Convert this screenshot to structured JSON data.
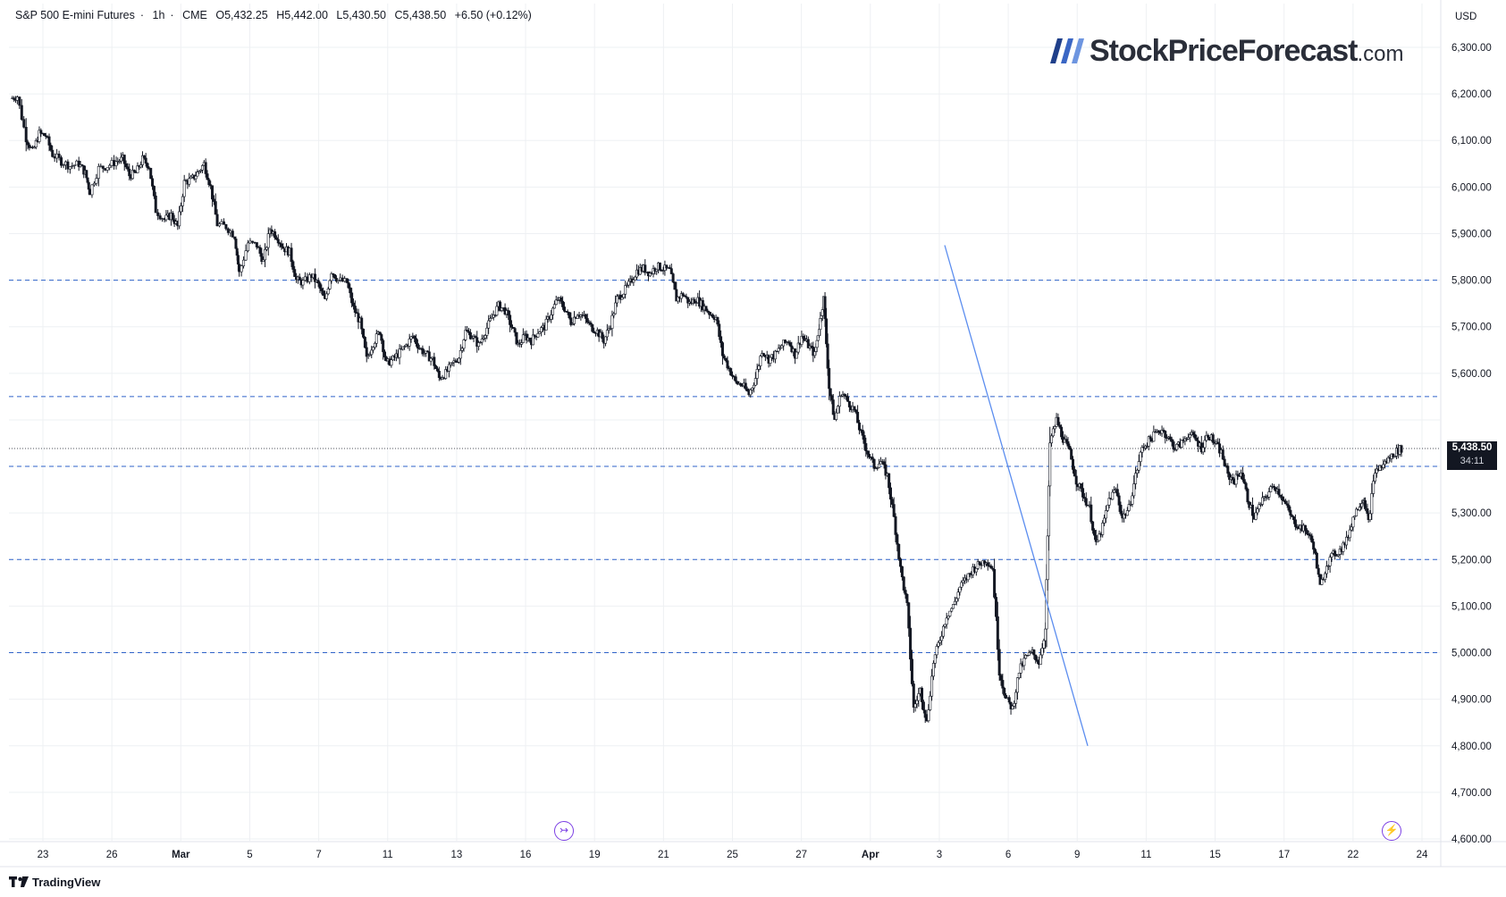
{
  "header": {
    "symbol": "S&P 500 E-mini Futures",
    "interval": "1h",
    "exchange": "CME",
    "open": "O5,432.25",
    "high": "H5,442.00",
    "low": "L5,430.50",
    "close": "C5,438.50",
    "change": "+6.50 (+0.12%)"
  },
  "currency": "USD",
  "brand": {
    "name": "StockPriceForecast",
    "domain": ".com"
  },
  "footer": {
    "provider": "TradingView"
  },
  "price_tag": {
    "value": "5,438.50",
    "countdown": "34:11"
  },
  "colors": {
    "candles": "#131722",
    "trendline": "#5b8def",
    "levels": "#2e62c9",
    "grid": "#eef0f3",
    "accent": "#7b3fe4"
  },
  "chart_data": {
    "type": "candlestick",
    "timeframe": "1h",
    "ylim": [
      4600,
      6300
    ],
    "yticks": [
      6300,
      6200,
      6100,
      6000,
      5900,
      5800,
      5700,
      5600,
      5500,
      5400,
      5300,
      5200,
      5100,
      5000,
      4900,
      4800,
      4700,
      4600
    ],
    "ytick_labels": [
      "6,300.00",
      "6,200.00",
      "6,100.00",
      "6,000.00",
      "5,900.00",
      "5,800.00",
      "5,700.00",
      "5,600.00",
      "",
      "",
      "5,300.00",
      "5,200.00",
      "5,100.00",
      "5,000.00",
      "4,900.00",
      "4,800.00",
      "4,700.00",
      "4,600.00"
    ],
    "xtick_labels": [
      "23",
      "26",
      "Mar",
      "5",
      "7",
      "11",
      "13",
      "16",
      "19",
      "21",
      "25",
      "27",
      "Apr",
      "3",
      "6",
      "9",
      "11",
      "15",
      "17",
      "22",
      "24"
    ],
    "xtick_bold": [
      "Mar",
      "Apr"
    ],
    "horizontal_levels": [
      5800,
      5550,
      5400,
      5200,
      5000
    ],
    "last_price": 5438.5,
    "trendline": {
      "from": {
        "label": "Apr 2",
        "value": 5875
      },
      "to": {
        "label": "Apr 8",
        "value": 4800
      }
    },
    "path": [
      [
        0,
        6190
      ],
      [
        0.6,
        6195
      ],
      [
        1.4,
        6105
      ],
      [
        2.0,
        6075
      ],
      [
        2.6,
        6115
      ],
      [
        3.2,
        6110
      ],
      [
        3.8,
        6070
      ],
      [
        4.6,
        6055
      ],
      [
        5.4,
        6045
      ],
      [
        6.2,
        6050
      ],
      [
        6.8,
        6030
      ],
      [
        7.2,
        5990
      ],
      [
        8.0,
        6040
      ],
      [
        8.8,
        6045
      ],
      [
        9.6,
        6055
      ],
      [
        10.2,
        6060
      ],
      [
        10.8,
        6025
      ],
      [
        11.4,
        6030
      ],
      [
        12.0,
        6060
      ],
      [
        12.6,
        6045
      ],
      [
        13.2,
        5950
      ],
      [
        14.0,
        5930
      ],
      [
        14.6,
        5940
      ],
      [
        15.2,
        5915
      ],
      [
        15.8,
        6010
      ],
      [
        16.4,
        6015
      ],
      [
        17.0,
        6030
      ],
      [
        17.6,
        6050
      ],
      [
        18.2,
        6000
      ],
      [
        18.8,
        5920
      ],
      [
        19.6,
        5915
      ],
      [
        20.4,
        5895
      ],
      [
        20.8,
        5815
      ],
      [
        21.6,
        5880
      ],
      [
        22.4,
        5875
      ],
      [
        23.0,
        5840
      ],
      [
        23.6,
        5910
      ],
      [
        24.2,
        5895
      ],
      [
        24.8,
        5870
      ],
      [
        25.4,
        5860
      ],
      [
        26.0,
        5800
      ],
      [
        26.6,
        5795
      ],
      [
        27.4,
        5810
      ],
      [
        28.0,
        5790
      ],
      [
        28.6,
        5755
      ],
      [
        29.2,
        5820
      ],
      [
        29.8,
        5800
      ],
      [
        30.6,
        5795
      ],
      [
        31.2,
        5740
      ],
      [
        31.8,
        5710
      ],
      [
        32.4,
        5630
      ],
      [
        33.0,
        5665
      ],
      [
        33.6,
        5690
      ],
      [
        34.2,
        5620
      ],
      [
        34.8,
        5630
      ],
      [
        35.4,
        5645
      ],
      [
        36.0,
        5660
      ],
      [
        36.6,
        5680
      ],
      [
        37.2,
        5655
      ],
      [
        37.8,
        5640
      ],
      [
        38.4,
        5630
      ],
      [
        39.0,
        5590
      ],
      [
        39.6,
        5600
      ],
      [
        40.2,
        5620
      ],
      [
        40.8,
        5635
      ],
      [
        41.4,
        5690
      ],
      [
        42.0,
        5680
      ],
      [
        42.6,
        5660
      ],
      [
        43.2,
        5690
      ],
      [
        43.8,
        5720
      ],
      [
        44.4,
        5745
      ],
      [
        45.0,
        5735
      ],
      [
        45.6,
        5700
      ],
      [
        46.2,
        5660
      ],
      [
        46.8,
        5680
      ],
      [
        47.4,
        5670
      ],
      [
        48.0,
        5690
      ],
      [
        48.6,
        5700
      ],
      [
        49.2,
        5730
      ],
      [
        49.8,
        5760
      ],
      [
        50.4,
        5740
      ],
      [
        51.0,
        5710
      ],
      [
        51.6,
        5730
      ],
      [
        52.2,
        5720
      ],
      [
        52.8,
        5700
      ],
      [
        53.4,
        5690
      ],
      [
        54.0,
        5670
      ],
      [
        54.6,
        5705
      ],
      [
        55.2,
        5760
      ],
      [
        55.8,
        5775
      ],
      [
        56.4,
        5795
      ],
      [
        57.0,
        5820
      ],
      [
        57.6,
        5825
      ],
      [
        58.2,
        5815
      ],
      [
        58.8,
        5830
      ],
      [
        59.4,
        5825
      ],
      [
        60.0,
        5820
      ],
      [
        60.6,
        5760
      ],
      [
        61.2,
        5770
      ],
      [
        61.8,
        5750
      ],
      [
        62.4,
        5760
      ],
      [
        63.0,
        5745
      ],
      [
        63.6,
        5730
      ],
      [
        64.2,
        5720
      ],
      [
        64.8,
        5640
      ],
      [
        65.4,
        5610
      ],
      [
        66.0,
        5580
      ],
      [
        66.6,
        5575
      ],
      [
        67.2,
        5555
      ],
      [
        67.8,
        5590
      ],
      [
        68.4,
        5650
      ],
      [
        69.0,
        5630
      ],
      [
        69.6,
        5640
      ],
      [
        70.2,
        5660
      ],
      [
        70.8,
        5670
      ],
      [
        71.4,
        5640
      ],
      [
        72.0,
        5680
      ],
      [
        72.6,
        5660
      ],
      [
        73.2,
        5640
      ],
      [
        73.6,
        5700
      ],
      [
        74.0,
        5760
      ],
      [
        74.5,
        5570
      ],
      [
        75.0,
        5500
      ],
      [
        75.6,
        5560
      ],
      [
        76.2,
        5540
      ],
      [
        76.8,
        5520
      ],
      [
        77.4,
        5470
      ],
      [
        78.0,
        5430
      ],
      [
        78.6,
        5400
      ],
      [
        79.2,
        5410
      ],
      [
        79.8,
        5380
      ],
      [
        80.4,
        5290
      ],
      [
        81.0,
        5180
      ],
      [
        81.6,
        5100
      ],
      [
        82.2,
        4880
      ],
      [
        82.8,
        4920
      ],
      [
        83.4,
        4850
      ],
      [
        84.0,
        4980
      ],
      [
        84.6,
        5030
      ],
      [
        85.2,
        5080
      ],
      [
        85.8,
        5100
      ],
      [
        86.4,
        5140
      ],
      [
        87.0,
        5160
      ],
      [
        87.6,
        5180
      ],
      [
        88.2,
        5190
      ],
      [
        88.8,
        5200
      ],
      [
        89.4,
        5180
      ],
      [
        90.0,
        4960
      ],
      [
        90.6,
        4900
      ],
      [
        91.2,
        4880
      ],
      [
        91.8,
        4960
      ],
      [
        92.4,
        4990
      ],
      [
        93.0,
        5000
      ],
      [
        93.6,
        4980
      ],
      [
        94.2,
        5050
      ],
      [
        94.6,
        5450
      ],
      [
        95.2,
        5500
      ],
      [
        95.8,
        5460
      ],
      [
        96.4,
        5430
      ],
      [
        97.0,
        5370
      ],
      [
        97.6,
        5340
      ],
      [
        98.2,
        5310
      ],
      [
        98.8,
        5230
      ],
      [
        99.4,
        5270
      ],
      [
        100.0,
        5330
      ],
      [
        100.6,
        5350
      ],
      [
        101.2,
        5290
      ],
      [
        101.8,
        5310
      ],
      [
        102.4,
        5380
      ],
      [
        103.0,
        5440
      ],
      [
        103.6,
        5455
      ],
      [
        104.2,
        5470
      ],
      [
        104.8,
        5480
      ],
      [
        105.4,
        5460
      ],
      [
        106.0,
        5440
      ],
      [
        106.6,
        5450
      ],
      [
        107.2,
        5470
      ],
      [
        107.8,
        5460
      ],
      [
        108.4,
        5440
      ],
      [
        109.0,
        5470
      ],
      [
        109.6,
        5450
      ],
      [
        110.2,
        5430
      ],
      [
        110.8,
        5380
      ],
      [
        111.4,
        5370
      ],
      [
        112.0,
        5390
      ],
      [
        112.6,
        5330
      ],
      [
        113.2,
        5290
      ],
      [
        113.8,
        5320
      ],
      [
        114.4,
        5340
      ],
      [
        115.0,
        5360
      ],
      [
        115.6,
        5340
      ],
      [
        116.2,
        5310
      ],
      [
        116.8,
        5280
      ],
      [
        117.4,
        5270
      ],
      [
        118.0,
        5260
      ],
      [
        118.6,
        5230
      ],
      [
        119.2,
        5140
      ],
      [
        119.8,
        5190
      ],
      [
        120.4,
        5210
      ],
      [
        121.0,
        5220
      ],
      [
        121.6,
        5240
      ],
      [
        122.2,
        5290
      ],
      [
        122.8,
        5320
      ],
      [
        123.2,
        5330
      ],
      [
        123.6,
        5280
      ],
      [
        124.2,
        5390
      ],
      [
        124.8,
        5400
      ],
      [
        125.4,
        5415
      ],
      [
        126.0,
        5430
      ],
      [
        126.6,
        5438.5
      ]
    ]
  }
}
